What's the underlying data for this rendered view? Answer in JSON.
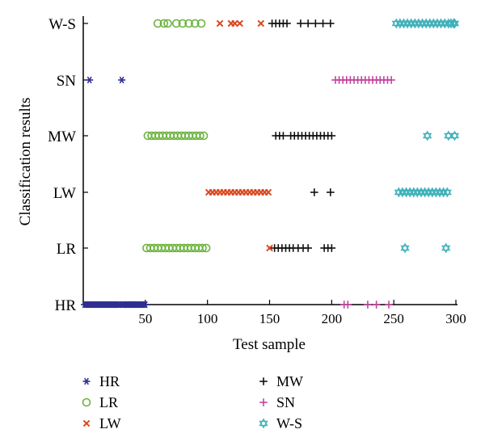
{
  "chart_data": {
    "type": "scatter",
    "title": "",
    "xlabel": "Test sample",
    "ylabel": "Classification results",
    "xlim": [
      0,
      300
    ],
    "x_ticks": [
      50,
      100,
      150,
      200,
      250,
      300
    ],
    "categories": [
      "HR",
      "LR",
      "LW",
      "MW",
      "SN",
      "W-S"
    ],
    "grid": false,
    "legend_position": "bottom",
    "series": [
      {
        "name": "HR",
        "marker": "asterisk",
        "color": "#2e2f8f",
        "points": [
          {
            "x": 1,
            "y": "HR"
          },
          {
            "x": 2,
            "y": "HR"
          },
          {
            "x": 3,
            "y": "HR"
          },
          {
            "x": 4,
            "y": "HR"
          },
          {
            "x": 5,
            "y": "HR"
          },
          {
            "x": 6,
            "y": "HR"
          },
          {
            "x": 7,
            "y": "HR"
          },
          {
            "x": 8,
            "y": "HR"
          },
          {
            "x": 9,
            "y": "HR"
          },
          {
            "x": 10,
            "y": "HR"
          },
          {
            "x": 11,
            "y": "HR"
          },
          {
            "x": 12,
            "y": "HR"
          },
          {
            "x": 13,
            "y": "HR"
          },
          {
            "x": 14,
            "y": "HR"
          },
          {
            "x": 15,
            "y": "HR"
          },
          {
            "x": 16,
            "y": "HR"
          },
          {
            "x": 17,
            "y": "HR"
          },
          {
            "x": 18,
            "y": "HR"
          },
          {
            "x": 19,
            "y": "HR"
          },
          {
            "x": 20,
            "y": "HR"
          },
          {
            "x": 21,
            "y": "HR"
          },
          {
            "x": 22,
            "y": "HR"
          },
          {
            "x": 23,
            "y": "HR"
          },
          {
            "x": 24,
            "y": "HR"
          },
          {
            "x": 25,
            "y": "HR"
          },
          {
            "x": 26,
            "y": "HR"
          },
          {
            "x": 27,
            "y": "HR"
          },
          {
            "x": 28,
            "y": "HR"
          },
          {
            "x": 29,
            "y": "HR"
          },
          {
            "x": 31,
            "y": "HR"
          },
          {
            "x": 32,
            "y": "HR"
          },
          {
            "x": 33,
            "y": "HR"
          },
          {
            "x": 34,
            "y": "HR"
          },
          {
            "x": 35,
            "y": "HR"
          },
          {
            "x": 36,
            "y": "HR"
          },
          {
            "x": 37,
            "y": "HR"
          },
          {
            "x": 38,
            "y": "HR"
          },
          {
            "x": 39,
            "y": "HR"
          },
          {
            "x": 40,
            "y": "HR"
          },
          {
            "x": 41,
            "y": "HR"
          },
          {
            "x": 42,
            "y": "HR"
          },
          {
            "x": 43,
            "y": "HR"
          },
          {
            "x": 44,
            "y": "HR"
          },
          {
            "x": 45,
            "y": "HR"
          },
          {
            "x": 46,
            "y": "HR"
          },
          {
            "x": 47,
            "y": "HR"
          },
          {
            "x": 48,
            "y": "HR"
          },
          {
            "x": 49,
            "y": "HR"
          },
          {
            "x": 50,
            "y": "HR"
          },
          {
            "x": 5,
            "y": "SN"
          },
          {
            "x": 31,
            "y": "SN"
          }
        ]
      },
      {
        "name": "LR",
        "marker": "circle",
        "color": "#6db33f",
        "points": [
          {
            "x": 60,
            "y": "W-S"
          },
          {
            "x": 65,
            "y": "W-S"
          },
          {
            "x": 68,
            "y": "W-S"
          },
          {
            "x": 75,
            "y": "W-S"
          },
          {
            "x": 80,
            "y": "W-S"
          },
          {
            "x": 85,
            "y": "W-S"
          },
          {
            "x": 90,
            "y": "W-S"
          },
          {
            "x": 95,
            "y": "W-S"
          },
          {
            "x": 52,
            "y": "MW"
          },
          {
            "x": 55,
            "y": "MW"
          },
          {
            "x": 58,
            "y": "MW"
          },
          {
            "x": 61,
            "y": "MW"
          },
          {
            "x": 64,
            "y": "MW"
          },
          {
            "x": 67,
            "y": "MW"
          },
          {
            "x": 70,
            "y": "MW"
          },
          {
            "x": 73,
            "y": "MW"
          },
          {
            "x": 76,
            "y": "MW"
          },
          {
            "x": 79,
            "y": "MW"
          },
          {
            "x": 82,
            "y": "MW"
          },
          {
            "x": 85,
            "y": "MW"
          },
          {
            "x": 88,
            "y": "MW"
          },
          {
            "x": 91,
            "y": "MW"
          },
          {
            "x": 94,
            "y": "MW"
          },
          {
            "x": 97,
            "y": "MW"
          },
          {
            "x": 51,
            "y": "LR"
          },
          {
            "x": 54,
            "y": "LR"
          },
          {
            "x": 57,
            "y": "LR"
          },
          {
            "x": 60,
            "y": "LR"
          },
          {
            "x": 63,
            "y": "LR"
          },
          {
            "x": 66,
            "y": "LR"
          },
          {
            "x": 69,
            "y": "LR"
          },
          {
            "x": 72,
            "y": "LR"
          },
          {
            "x": 75,
            "y": "LR"
          },
          {
            "x": 78,
            "y": "LR"
          },
          {
            "x": 81,
            "y": "LR"
          },
          {
            "x": 84,
            "y": "LR"
          },
          {
            "x": 87,
            "y": "LR"
          },
          {
            "x": 90,
            "y": "LR"
          },
          {
            "x": 93,
            "y": "LR"
          },
          {
            "x": 96,
            "y": "LR"
          },
          {
            "x": 99,
            "y": "LR"
          }
        ]
      },
      {
        "name": "LW",
        "marker": "x",
        "color": "#d9471f",
        "points": [
          {
            "x": 110,
            "y": "W-S"
          },
          {
            "x": 119,
            "y": "W-S"
          },
          {
            "x": 122,
            "y": "W-S"
          },
          {
            "x": 126,
            "y": "W-S"
          },
          {
            "x": 143,
            "y": "W-S"
          },
          {
            "x": 101,
            "y": "LW"
          },
          {
            "x": 104,
            "y": "LW"
          },
          {
            "x": 107,
            "y": "LW"
          },
          {
            "x": 110,
            "y": "LW"
          },
          {
            "x": 113,
            "y": "LW"
          },
          {
            "x": 116,
            "y": "LW"
          },
          {
            "x": 119,
            "y": "LW"
          },
          {
            "x": 122,
            "y": "LW"
          },
          {
            "x": 125,
            "y": "LW"
          },
          {
            "x": 128,
            "y": "LW"
          },
          {
            "x": 131,
            "y": "LW"
          },
          {
            "x": 134,
            "y": "LW"
          },
          {
            "x": 137,
            "y": "LW"
          },
          {
            "x": 140,
            "y": "LW"
          },
          {
            "x": 143,
            "y": "LW"
          },
          {
            "x": 146,
            "y": "LW"
          },
          {
            "x": 149,
            "y": "LW"
          },
          {
            "x": 150,
            "y": "LR"
          }
        ]
      },
      {
        "name": "MW",
        "marker": "plus",
        "color": "#111111",
        "points": [
          {
            "x": 152,
            "y": "W-S"
          },
          {
            "x": 155,
            "y": "W-S"
          },
          {
            "x": 158,
            "y": "W-S"
          },
          {
            "x": 161,
            "y": "W-S"
          },
          {
            "x": 164,
            "y": "W-S"
          },
          {
            "x": 175,
            "y": "W-S"
          },
          {
            "x": 181,
            "y": "W-S"
          },
          {
            "x": 187,
            "y": "W-S"
          },
          {
            "x": 193,
            "y": "W-S"
          },
          {
            "x": 199,
            "y": "W-S"
          },
          {
            "x": 155,
            "y": "MW"
          },
          {
            "x": 158,
            "y": "MW"
          },
          {
            "x": 161,
            "y": "MW"
          },
          {
            "x": 167,
            "y": "MW"
          },
          {
            "x": 170,
            "y": "MW"
          },
          {
            "x": 173,
            "y": "MW"
          },
          {
            "x": 176,
            "y": "MW"
          },
          {
            "x": 179,
            "y": "MW"
          },
          {
            "x": 182,
            "y": "MW"
          },
          {
            "x": 185,
            "y": "MW"
          },
          {
            "x": 188,
            "y": "MW"
          },
          {
            "x": 191,
            "y": "MW"
          },
          {
            "x": 194,
            "y": "MW"
          },
          {
            "x": 197,
            "y": "MW"
          },
          {
            "x": 200,
            "y": "MW"
          },
          {
            "x": 186,
            "y": "LW"
          },
          {
            "x": 199,
            "y": "LW"
          },
          {
            "x": 154,
            "y": "LR"
          },
          {
            "x": 157,
            "y": "LR"
          },
          {
            "x": 160,
            "y": "LR"
          },
          {
            "x": 163,
            "y": "LR"
          },
          {
            "x": 166,
            "y": "LR"
          },
          {
            "x": 169,
            "y": "LR"
          },
          {
            "x": 173,
            "y": "LR"
          },
          {
            "x": 177,
            "y": "LR"
          },
          {
            "x": 181,
            "y": "LR"
          },
          {
            "x": 194,
            "y": "LR"
          },
          {
            "x": 197,
            "y": "LR"
          },
          {
            "x": 200,
            "y": "LR"
          }
        ]
      },
      {
        "name": "SN",
        "marker": "plus",
        "color": "#c2449e",
        "points": [
          {
            "x": 203,
            "y": "SN"
          },
          {
            "x": 206,
            "y": "SN"
          },
          {
            "x": 209,
            "y": "SN"
          },
          {
            "x": 212,
            "y": "SN"
          },
          {
            "x": 215,
            "y": "SN"
          },
          {
            "x": 218,
            "y": "SN"
          },
          {
            "x": 221,
            "y": "SN"
          },
          {
            "x": 224,
            "y": "SN"
          },
          {
            "x": 227,
            "y": "SN"
          },
          {
            "x": 230,
            "y": "SN"
          },
          {
            "x": 233,
            "y": "SN"
          },
          {
            "x": 236,
            "y": "SN"
          },
          {
            "x": 239,
            "y": "SN"
          },
          {
            "x": 242,
            "y": "SN"
          },
          {
            "x": 245,
            "y": "SN"
          },
          {
            "x": 248,
            "y": "SN"
          },
          {
            "x": 210,
            "y": "HR"
          },
          {
            "x": 213,
            "y": "HR"
          },
          {
            "x": 229,
            "y": "HR"
          },
          {
            "x": 236,
            "y": "HR"
          },
          {
            "x": 246,
            "y": "HR"
          }
        ]
      },
      {
        "name": "W-S",
        "marker": "star6",
        "color": "#3fb1ba",
        "points": [
          {
            "x": 252,
            "y": "W-S"
          },
          {
            "x": 255,
            "y": "W-S"
          },
          {
            "x": 258,
            "y": "W-S"
          },
          {
            "x": 261,
            "y": "W-S"
          },
          {
            "x": 264,
            "y": "W-S"
          },
          {
            "x": 267,
            "y": "W-S"
          },
          {
            "x": 270,
            "y": "W-S"
          },
          {
            "x": 273,
            "y": "W-S"
          },
          {
            "x": 276,
            "y": "W-S"
          },
          {
            "x": 279,
            "y": "W-S"
          },
          {
            "x": 282,
            "y": "W-S"
          },
          {
            "x": 285,
            "y": "W-S"
          },
          {
            "x": 288,
            "y": "W-S"
          },
          {
            "x": 291,
            "y": "W-S"
          },
          {
            "x": 294,
            "y": "W-S"
          },
          {
            "x": 296,
            "y": "W-S"
          },
          {
            "x": 298,
            "y": "W-S"
          },
          {
            "x": 299,
            "y": "W-S"
          },
          {
            "x": 277,
            "y": "MW"
          },
          {
            "x": 294,
            "y": "MW"
          },
          {
            "x": 299,
            "y": "MW"
          },
          {
            "x": 254,
            "y": "LW"
          },
          {
            "x": 257,
            "y": "LW"
          },
          {
            "x": 260,
            "y": "LW"
          },
          {
            "x": 263,
            "y": "LW"
          },
          {
            "x": 266,
            "y": "LW"
          },
          {
            "x": 269,
            "y": "LW"
          },
          {
            "x": 272,
            "y": "LW"
          },
          {
            "x": 275,
            "y": "LW"
          },
          {
            "x": 278,
            "y": "LW"
          },
          {
            "x": 281,
            "y": "LW"
          },
          {
            "x": 284,
            "y": "LW"
          },
          {
            "x": 287,
            "y": "LW"
          },
          {
            "x": 290,
            "y": "LW"
          },
          {
            "x": 293,
            "y": "LW"
          },
          {
            "x": 259,
            "y": "LR"
          },
          {
            "x": 292,
            "y": "LR"
          }
        ]
      }
    ]
  }
}
